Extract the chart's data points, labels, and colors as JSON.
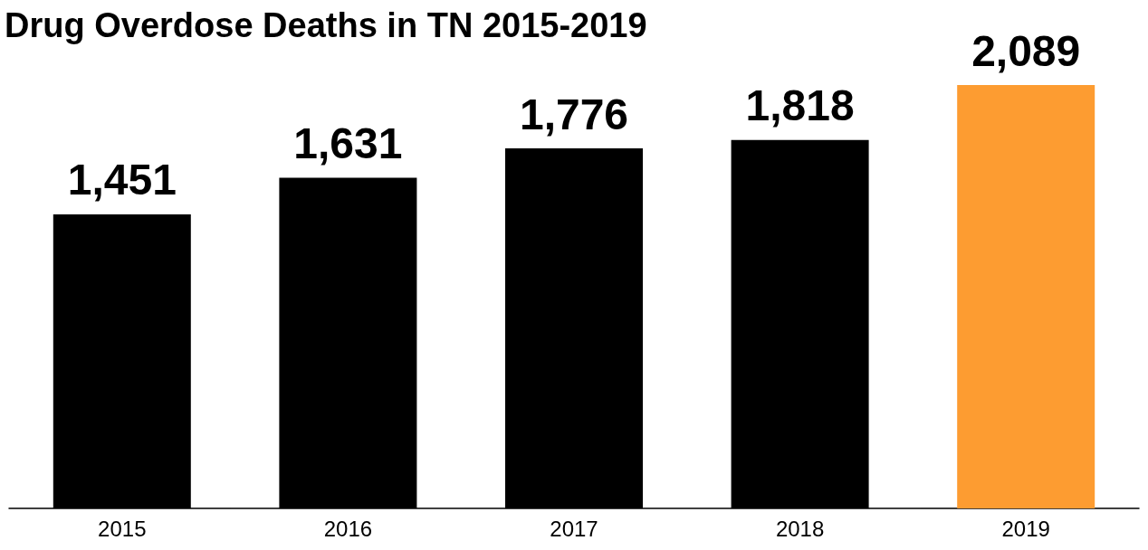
{
  "chart_data": {
    "type": "bar",
    "title": "Drug Overdose Deaths in TN 2015-2019",
    "categories": [
      "2015",
      "2016",
      "2017",
      "2018",
      "2019"
    ],
    "values": [
      1451,
      1631,
      1776,
      1818,
      2089
    ],
    "colors": [
      "#000000",
      "#000000",
      "#000000",
      "#000000",
      "#fd9c31"
    ],
    "value_labels": [
      "1,451",
      "1,631",
      "1,776",
      "1,818",
      "2,089"
    ]
  }
}
